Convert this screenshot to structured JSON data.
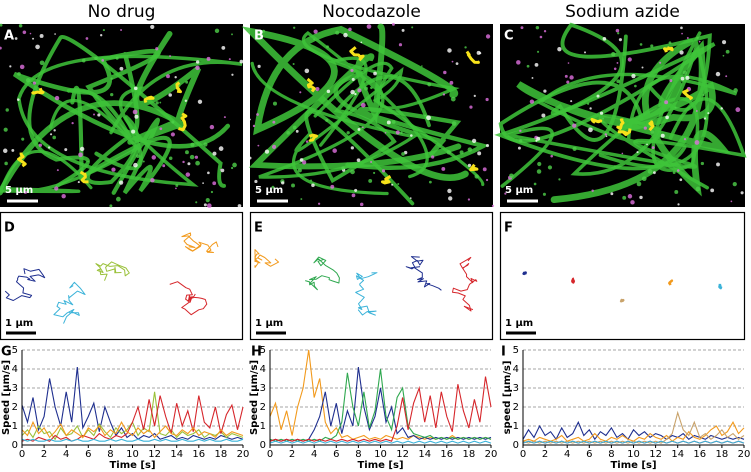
{
  "columns": [
    {
      "title": "No drug",
      "image_label": "A",
      "image_scale": "5 μm",
      "traj_label": "D",
      "traj_scale": "1 μm",
      "chart_label": "G"
    },
    {
      "title": "Nocodazole",
      "image_label": "B",
      "image_scale": "5 μm",
      "traj_label": "E",
      "traj_scale": "1 μm",
      "chart_label": "H"
    },
    {
      "title": "Sodium azide",
      "image_label": "C",
      "image_scale": "5 μm",
      "traj_label": "F",
      "traj_scale": "1 μm",
      "chart_label": "I"
    }
  ],
  "chart_data": [
    {
      "type": "line",
      "y_label": "Speed [μm/s]",
      "x_label": "Time [s]",
      "xlim": [
        0,
        20
      ],
      "xticks": [
        0,
        2,
        4,
        6,
        8,
        10,
        12,
        14,
        16,
        18,
        20
      ],
      "ylim": [
        0,
        5
      ],
      "yticks": [
        0,
        1,
        2,
        3,
        4,
        5
      ],
      "grid": true,
      "x": [
        0,
        0.5,
        1,
        1.5,
        2,
        2.5,
        3,
        3.5,
        4,
        4.5,
        5,
        5.5,
        6,
        6.5,
        7,
        7.5,
        8,
        8.5,
        9,
        9.5,
        10,
        10.5,
        11,
        11.5,
        12,
        12.5,
        13,
        13.5,
        14,
        14.5,
        15,
        15.5,
        16,
        16.5,
        17,
        17.5,
        18,
        18.5,
        19,
        19.5,
        20
      ],
      "series": [
        {
          "color": "#1f2f8f",
          "values": [
            2.1,
            1.2,
            2.5,
            0.8,
            1.5,
            3.5,
            2.0,
            1.0,
            2.8,
            1.2,
            4.1,
            0.9,
            1.5,
            2.2,
            0.7,
            2.0,
            1.2,
            0.5,
            0.9,
            0.4,
            0.6,
            0.3,
            0.5,
            0.4,
            0.6,
            0.3,
            0.4,
            0.5,
            0.3,
            0.4,
            0.3,
            0.5,
            0.4,
            0.3,
            0.4,
            0.3,
            0.5,
            0.4,
            0.3,
            0.4,
            0.3
          ]
        },
        {
          "color": "#9ac13a",
          "values": [
            0.5,
            0.8,
            0.4,
            1.0,
            0.6,
            0.7,
            0.3,
            0.9,
            0.5,
            0.6,
            1.0,
            0.4,
            0.8,
            0.5,
            1.1,
            0.7,
            0.4,
            0.9,
            0.6,
            0.8,
            1.2,
            0.5,
            0.9,
            0.7,
            2.8,
            0.6,
            0.5,
            0.8,
            0.4,
            0.7,
            0.5,
            0.6,
            0.8,
            0.4,
            0.6,
            0.5,
            0.7,
            0.4,
            0.6,
            0.5,
            0.4
          ]
        },
        {
          "color": "#d6262b",
          "values": [
            0.2,
            0.3,
            0.2,
            0.4,
            0.3,
            0.2,
            0.5,
            0.3,
            0.4,
            0.2,
            0.3,
            0.5,
            0.4,
            0.3,
            0.6,
            0.4,
            0.3,
            0.5,
            0.4,
            0.6,
            1.2,
            2.0,
            0.8,
            2.4,
            1.0,
            2.6,
            1.5,
            0.6,
            2.2,
            1.0,
            1.8,
            0.7,
            2.6,
            1.2,
            0.9,
            2.0,
            0.6,
            1.6,
            2.1,
            0.8,
            2.0
          ]
        },
        {
          "color": "#f29a1d",
          "values": [
            0.8,
            0.5,
            1.2,
            0.6,
            0.9,
            0.4,
            0.7,
            1.1,
            0.5,
            0.8,
            0.6,
            0.4,
            0.9,
            0.7,
            1.0,
            0.5,
            0.8,
            0.6,
            1.2,
            0.7,
            0.5,
            0.9,
            0.6,
            0.8,
            0.4,
            0.7,
            1.0,
            0.6,
            0.5,
            0.8,
            0.6,
            0.9,
            0.5,
            0.7,
            0.6,
            0.4,
            0.8,
            0.5,
            0.7,
            0.6,
            0.5
          ]
        },
        {
          "color": "#3bb3d9",
          "values": [
            0.3,
            0.2,
            0.3,
            0.2,
            0.2,
            0.3,
            0.2,
            0.2,
            0.3,
            0.2,
            0.3,
            0.2,
            0.2,
            0.3,
            0.2,
            0.2,
            0.3,
            0.2,
            0.3,
            0.2,
            0.2,
            0.3,
            0.2,
            0.2,
            0.3,
            0.2,
            0.3,
            0.2,
            0.2,
            0.3,
            0.2,
            0.2,
            0.3,
            0.2,
            0.3,
            0.2,
            0.2,
            0.3,
            0.2,
            0.2,
            0.3
          ]
        }
      ]
    },
    {
      "type": "line",
      "y_label": "Speed [μm/s]",
      "x_label": "Time [s]",
      "xlim": [
        0,
        20
      ],
      "xticks": [
        0,
        2,
        4,
        6,
        8,
        10,
        12,
        14,
        16,
        18,
        20
      ],
      "ylim": [
        0,
        5
      ],
      "yticks": [
        0,
        1,
        2,
        3,
        4,
        5
      ],
      "grid": true,
      "x": [
        0,
        0.5,
        1,
        1.5,
        2,
        2.5,
        3,
        3.5,
        4,
        4.5,
        5,
        5.5,
        6,
        6.5,
        7,
        7.5,
        8,
        8.5,
        9,
        9.5,
        10,
        10.5,
        11,
        11.5,
        12,
        12.5,
        13,
        13.5,
        14,
        14.5,
        15,
        15.5,
        16,
        16.5,
        17,
        17.5,
        18,
        18.5,
        19,
        19.5,
        20
      ],
      "series": [
        {
          "color": "#f29a1d",
          "values": [
            1.5,
            2.2,
            0.8,
            1.8,
            0.5,
            2.0,
            3.0,
            5.0,
            2.5,
            3.5,
            1.2,
            0.6,
            0.9,
            0.4,
            0.5,
            0.3,
            0.4,
            0.5,
            0.3,
            0.4,
            0.3,
            0.5,
            0.4,
            0.3,
            0.4,
            0.3,
            0.5,
            0.4,
            0.3,
            0.4,
            0.3,
            0.4,
            0.3,
            0.5,
            0.3,
            0.4,
            0.3,
            0.4,
            0.3,
            0.4,
            0.3
          ]
        },
        {
          "color": "#1f2f8f",
          "values": [
            0.2,
            0.3,
            0.2,
            0.3,
            0.2,
            0.3,
            0.2,
            0.3,
            0.8,
            1.5,
            2.8,
            1.0,
            2.2,
            0.6,
            1.8,
            1.0,
            4.1,
            2.0,
            0.8,
            1.5,
            3.0,
            1.2,
            2.0,
            0.6,
            0.9,
            0.4,
            0.5,
            0.3,
            0.4,
            0.3,
            0.4,
            0.3,
            0.4,
            0.3,
            0.4,
            0.3,
            0.4,
            0.3,
            0.4,
            0.3,
            0.4
          ]
        },
        {
          "color": "#2fa84f",
          "values": [
            0.3,
            0.2,
            0.3,
            0.2,
            0.3,
            0.2,
            0.3,
            0.2,
            0.3,
            0.2,
            0.4,
            0.3,
            0.5,
            1.2,
            3.8,
            2.0,
            1.0,
            2.8,
            0.9,
            1.8,
            4.0,
            1.5,
            0.8,
            2.5,
            3.0,
            1.0,
            0.6,
            0.5,
            0.4,
            0.5,
            0.3,
            0.4,
            0.3,
            0.4,
            0.3,
            0.4,
            0.3,
            0.4,
            0.3,
            0.4,
            0.3
          ]
        },
        {
          "color": "#d6262b",
          "values": [
            0.2,
            0.3,
            0.2,
            0.3,
            0.2,
            0.3,
            0.2,
            0.3,
            0.2,
            0.3,
            0.2,
            0.3,
            0.2,
            0.3,
            0.2,
            0.3,
            0.2,
            0.3,
            0.2,
            0.3,
            0.2,
            0.3,
            0.2,
            1.0,
            2.5,
            0.8,
            2.2,
            3.0,
            1.2,
            2.6,
            0.9,
            2.8,
            1.5,
            0.7,
            3.2,
            1.8,
            0.9,
            2.4,
            1.2,
            3.6,
            2.0
          ]
        },
        {
          "color": "#3bb3d9",
          "values": [
            0.1,
            0.2,
            0.1,
            0.2,
            0.1,
            0.2,
            0.1,
            0.2,
            0.1,
            0.2,
            0.1,
            0.2,
            0.1,
            0.2,
            0.1,
            0.2,
            0.1,
            0.2,
            0.1,
            0.2,
            0.1,
            0.2,
            0.1,
            0.2,
            0.1,
            0.2,
            0.1,
            0.2,
            0.1,
            0.2,
            0.1,
            0.2,
            0.1,
            0.2,
            0.1,
            0.2,
            0.1,
            0.2,
            0.1,
            0.2,
            0.1
          ]
        }
      ]
    },
    {
      "type": "line",
      "y_label": "speed [μm/s]",
      "x_label": "Time [s]",
      "xlim": [
        0,
        20
      ],
      "xticks": [
        0,
        2,
        4,
        6,
        8,
        10,
        12,
        14,
        16,
        18,
        20
      ],
      "ylim": [
        0,
        5
      ],
      "yticks": [
        0,
        1,
        2,
        3,
        4,
        5
      ],
      "grid": true,
      "x": [
        0,
        0.5,
        1,
        1.5,
        2,
        2.5,
        3,
        3.5,
        4,
        4.5,
        5,
        5.5,
        6,
        6.5,
        7,
        7.5,
        8,
        8.5,
        9,
        9.5,
        10,
        10.5,
        11,
        11.5,
        12,
        12.5,
        13,
        13.5,
        14,
        14.5,
        15,
        15.5,
        16,
        16.5,
        17,
        17.5,
        18,
        18.5,
        19,
        19.5,
        20
      ],
      "series": [
        {
          "color": "#1f2f8f",
          "values": [
            0.3,
            0.8,
            0.4,
            1.0,
            0.5,
            0.7,
            0.3,
            0.9,
            0.4,
            0.6,
            1.2,
            0.5,
            0.8,
            0.3,
            0.7,
            0.5,
            0.9,
            0.4,
            0.6,
            0.3,
            0.8,
            0.5,
            0.7,
            0.4,
            0.6,
            0.5,
            0.3,
            0.5,
            0.4,
            0.6,
            0.3,
            0.5,
            0.4,
            0.3,
            0.5,
            0.4,
            0.3,
            0.4,
            0.3,
            0.4,
            0.3
          ]
        },
        {
          "color": "#d6262b",
          "values": [
            0.1,
            0.2,
            0.1,
            0.2,
            0.1,
            0.2,
            0.1,
            0.2,
            0.1,
            0.2,
            0.1,
            0.2,
            0.1,
            0.2,
            0.1,
            0.2,
            0.1,
            0.2,
            0.1,
            0.2,
            0.1,
            0.2,
            0.1,
            0.2,
            0.1,
            0.2,
            0.1,
            0.2,
            0.1,
            0.2,
            0.1,
            0.2,
            0.1,
            0.2,
            0.1,
            0.2,
            0.1,
            0.2,
            0.1,
            0.2,
            0.1
          ]
        },
        {
          "color": "#f29a1d",
          "values": [
            0.2,
            0.3,
            0.2,
            0.4,
            0.3,
            0.2,
            0.3,
            0.5,
            0.2,
            0.3,
            0.4,
            0.2,
            0.3,
            0.6,
            0.3,
            0.2,
            0.4,
            0.3,
            0.5,
            0.3,
            0.2,
            0.4,
            0.3,
            0.6,
            0.4,
            0.3,
            0.5,
            0.2,
            0.4,
            0.3,
            0.7,
            0.4,
            0.3,
            0.5,
            0.8,
            1.0,
            0.5,
            0.7,
            1.2,
            0.6,
            0.9
          ]
        },
        {
          "color": "#c9a36b",
          "values": [
            0.2,
            0.1,
            0.2,
            0.1,
            0.2,
            0.1,
            0.2,
            0.1,
            0.2,
            0.1,
            0.2,
            0.1,
            0.2,
            0.1,
            0.2,
            0.1,
            0.2,
            0.1,
            0.2,
            0.1,
            0.2,
            0.1,
            0.2,
            0.1,
            0.2,
            0.1,
            0.3,
            0.6,
            1.7,
            0.8,
            0.5,
            1.2,
            0.4,
            0.6,
            0.3,
            0.5,
            0.8,
            0.4,
            0.6,
            0.3,
            0.5
          ]
        },
        {
          "color": "#3bb3d9",
          "values": [
            0.1,
            0.2,
            0.1,
            0.2,
            0.1,
            0.2,
            0.1,
            0.2,
            0.1,
            0.2,
            0.1,
            0.2,
            0.1,
            0.2,
            0.1,
            0.2,
            0.1,
            0.2,
            0.1,
            0.2,
            0.1,
            0.2,
            0.1,
            0.2,
            0.1,
            0.2,
            0.1,
            0.2,
            0.1,
            0.2,
            0.1,
            0.2,
            0.1,
            0.2,
            0.1,
            0.2,
            0.1,
            0.2,
            0.1,
            0.2,
            0.1
          ]
        }
      ]
    }
  ]
}
